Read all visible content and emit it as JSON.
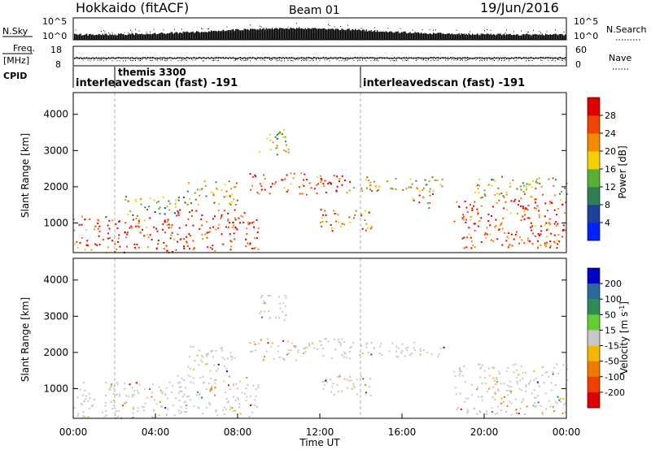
{
  "header": {
    "station": "Hokkaido (fitACF)",
    "beam": "Beam 01",
    "date": "19/Jun/2016"
  },
  "summary_panels": {
    "nsky": {
      "label": "N.Sky",
      "ticks": [
        "10^5",
        "10^0"
      ]
    },
    "nsearch": {
      "label": "N.Search",
      "ticks": [
        "10^5",
        "10^0"
      ]
    },
    "freq": {
      "label_top": "Freq.",
      "label_bottom": "[MHz]",
      "ticks": [
        "18",
        "8"
      ]
    },
    "nave": {
      "label": "Nave",
      "ticks": [
        "60",
        "0"
      ]
    },
    "cpid": {
      "label": "CPID",
      "entries": [
        {
          "text": "interleavedscan (fast) -191",
          "start_hour": 0
        },
        {
          "text": "themis 3300",
          "start_hour": 2
        },
        {
          "text": "interleavedscan (fast) -191",
          "start_hour": 14
        }
      ]
    }
  },
  "chart_data": [
    {
      "type": "heatmap",
      "parameter": "power",
      "ylabel": "Slant Range [km]",
      "xlim": [
        0,
        24
      ],
      "ylim": [
        180,
        4600
      ],
      "yticks": [
        "1000",
        "2000",
        "3000",
        "4000"
      ],
      "ytick_values": [
        1000,
        2000,
        3000,
        4000
      ],
      "colorbar": {
        "label": "Power [dB]",
        "ticks": [
          "4",
          "8",
          "12",
          "16",
          "20",
          "24",
          "28"
        ],
        "colors": [
          "#0022ff",
          "#1f3f9c",
          "#2f7f55",
          "#55b033",
          "#f5d000",
          "#f58a00",
          "#f04500",
          "#e00000"
        ]
      },
      "echo_regions": [
        {
          "t0": 0.0,
          "t1": 5.0,
          "r0": 200,
          "r1": 1200,
          "level": 0.85
        },
        {
          "t0": 2.5,
          "t1": 5.5,
          "r0": 1200,
          "r1": 1750,
          "level": 0.45
        },
        {
          "t0": 5.0,
          "t1": 9.0,
          "r0": 250,
          "r1": 1400,
          "level": 0.9
        },
        {
          "t0": 5.5,
          "t1": 8.0,
          "r0": 1500,
          "r1": 2200,
          "level": 0.6
        },
        {
          "t0": 8.5,
          "t1": 13.5,
          "r0": 1800,
          "r1": 2400,
          "level": 0.85
        },
        {
          "t0": 9.0,
          "t1": 10.5,
          "r0": 2900,
          "r1": 3600,
          "level": 0.5
        },
        {
          "t0": 12.0,
          "t1": 14.5,
          "r0": 800,
          "r1": 1400,
          "level": 0.7
        },
        {
          "t0": 13.5,
          "t1": 18.0,
          "r0": 1900,
          "r1": 2300,
          "level": 0.6
        },
        {
          "t0": 16.5,
          "t1": 17.5,
          "r0": 1400,
          "r1": 2000,
          "level": 0.7
        },
        {
          "t0": 18.5,
          "t1": 24.0,
          "r0": 300,
          "r1": 1700,
          "level": 0.85
        },
        {
          "t0": 19.5,
          "t1": 24.0,
          "r0": 1700,
          "r1": 2300,
          "level": 0.5
        }
      ]
    },
    {
      "type": "heatmap",
      "parameter": "velocity",
      "xlabel": "Time UT",
      "ylabel": "Slant Range [km]",
      "xlim": [
        0,
        24
      ],
      "ylim": [
        180,
        4600
      ],
      "xticks": [
        "00:00",
        "04:00",
        "08:00",
        "12:00",
        "16:00",
        "20:00",
        "00:00"
      ],
      "xtick_values": [
        0,
        4,
        8,
        12,
        16,
        20,
        24
      ],
      "yticks": [
        "1000",
        "2000",
        "3000",
        "4000"
      ],
      "ytick_values": [
        1000,
        2000,
        3000,
        4000
      ],
      "colorbar": {
        "label": "Velocity",
        "label_unit": "[m s",
        "label_sup": "-1",
        "label_close": "]",
        "ticks": [
          "200",
          "100",
          "50",
          "15",
          "-15",
          "-50",
          "-100",
          "-200"
        ],
        "colors": [
          "#0000c8",
          "#2a6a9a",
          "#2e8b57",
          "#66cc33",
          "#c8c8c8",
          "#f5b800",
          "#f07a00",
          "#f04000",
          "#e00000"
        ]
      },
      "echo_regions": [
        {
          "t0": 0.0,
          "t1": 5.0,
          "r0": 200,
          "r1": 1200
        },
        {
          "t0": 5.0,
          "t1": 9.0,
          "r0": 250,
          "r1": 1400
        },
        {
          "t0": 5.5,
          "t1": 8.0,
          "r0": 1500,
          "r1": 2200
        },
        {
          "t0": 8.5,
          "t1": 13.5,
          "r0": 1800,
          "r1": 2400
        },
        {
          "t0": 9.0,
          "t1": 10.5,
          "r0": 2900,
          "r1": 3600
        },
        {
          "t0": 12.0,
          "t1": 14.5,
          "r0": 800,
          "r1": 1400
        },
        {
          "t0": 13.5,
          "t1": 18.0,
          "r0": 1900,
          "r1": 2300
        },
        {
          "t0": 18.5,
          "t1": 24.0,
          "r0": 300,
          "r1": 1700
        }
      ]
    }
  ]
}
